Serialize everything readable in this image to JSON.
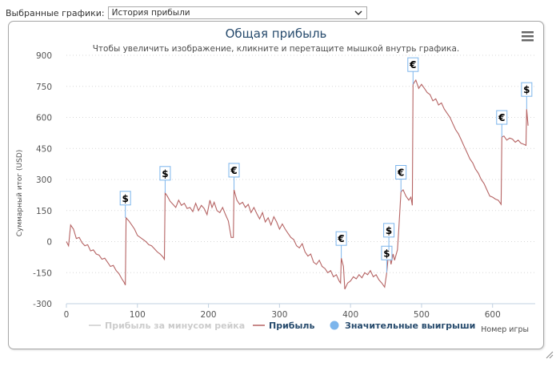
{
  "selector": {
    "label": "Выбранные графики:",
    "value": "История прибыли"
  },
  "chart_data": {
    "type": "line",
    "title": "Общая прибыль",
    "subtitle": "Чтобы увеличить изображение, кликните и перетащите мышкой внутрь графика.",
    "ylabel": "Суммарный итог (USD)",
    "xlabel": "Номер игры",
    "xlim": [
      0,
      660
    ],
    "ylim": [
      -300,
      900
    ],
    "xticks": [
      0,
      100,
      200,
      300,
      400,
      500,
      600
    ],
    "yticks": [
      -300,
      -150,
      0,
      150,
      300,
      450,
      600,
      750,
      900
    ],
    "grid": "horizontal-dotted",
    "series": [
      {
        "name": "Прибыль за минусом рейка",
        "color": "#cccccc",
        "hidden": true,
        "values": []
      },
      {
        "name": "Прибыль",
        "color": "#b56363",
        "points": [
          [
            0,
            0
          ],
          [
            3,
            -20
          ],
          [
            6,
            80
          ],
          [
            10,
            60
          ],
          [
            14,
            15
          ],
          [
            18,
            20
          ],
          [
            22,
            -5
          ],
          [
            26,
            -20
          ],
          [
            30,
            -15
          ],
          [
            34,
            -45
          ],
          [
            38,
            -40
          ],
          [
            42,
            -60
          ],
          [
            46,
            -65
          ],
          [
            50,
            -85
          ],
          [
            54,
            -80
          ],
          [
            58,
            -100
          ],
          [
            62,
            -120
          ],
          [
            66,
            -115
          ],
          [
            70,
            -140
          ],
          [
            74,
            -155
          ],
          [
            78,
            -180
          ],
          [
            81,
            -195
          ],
          [
            83,
            -210
          ],
          [
            84,
            115
          ],
          [
            88,
            100
          ],
          [
            92,
            80
          ],
          [
            96,
            60
          ],
          [
            100,
            30
          ],
          [
            104,
            20
          ],
          [
            108,
            10
          ],
          [
            112,
            0
          ],
          [
            116,
            -15
          ],
          [
            120,
            -20
          ],
          [
            124,
            -35
          ],
          [
            128,
            -50
          ],
          [
            132,
            -60
          ],
          [
            136,
            -75
          ],
          [
            138,
            -85
          ],
          [
            139,
            235
          ],
          [
            142,
            220
          ],
          [
            146,
            195
          ],
          [
            150,
            180
          ],
          [
            154,
            165
          ],
          [
            158,
            200
          ],
          [
            162,
            175
          ],
          [
            166,
            185
          ],
          [
            170,
            160
          ],
          [
            174,
            165
          ],
          [
            178,
            145
          ],
          [
            182,
            185
          ],
          [
            186,
            150
          ],
          [
            190,
            175
          ],
          [
            194,
            160
          ],
          [
            198,
            130
          ],
          [
            202,
            200
          ],
          [
            205,
            165
          ],
          [
            208,
            190
          ],
          [
            212,
            150
          ],
          [
            216,
            140
          ],
          [
            220,
            165
          ],
          [
            224,
            130
          ],
          [
            228,
            100
          ],
          [
            232,
            20
          ],
          [
            235,
            20
          ],
          [
            236,
            250
          ],
          [
            240,
            200
          ],
          [
            244,
            180
          ],
          [
            248,
            190
          ],
          [
            252,
            165
          ],
          [
            256,
            180
          ],
          [
            260,
            140
          ],
          [
            264,
            165
          ],
          [
            268,
            135
          ],
          [
            272,
            110
          ],
          [
            276,
            140
          ],
          [
            280,
            95
          ],
          [
            284,
            115
          ],
          [
            288,
            80
          ],
          [
            292,
            120
          ],
          [
            296,
            95
          ],
          [
            300,
            60
          ],
          [
            304,
            85
          ],
          [
            308,
            60
          ],
          [
            312,
            40
          ],
          [
            316,
            20
          ],
          [
            320,
            10
          ],
          [
            324,
            -20
          ],
          [
            328,
            -30
          ],
          [
            332,
            -10
          ],
          [
            336,
            -50
          ],
          [
            340,
            -70
          ],
          [
            344,
            -60
          ],
          [
            348,
            -100
          ],
          [
            352,
            -110
          ],
          [
            356,
            -90
          ],
          [
            360,
            -120
          ],
          [
            364,
            -130
          ],
          [
            368,
            -150
          ],
          [
            372,
            -140
          ],
          [
            376,
            -170
          ],
          [
            380,
            -160
          ],
          [
            384,
            -190
          ],
          [
            386,
            -200
          ],
          [
            387,
            -80
          ],
          [
            390,
            -120
          ],
          [
            392,
            -230
          ],
          [
            396,
            -200
          ],
          [
            400,
            -190
          ],
          [
            404,
            -170
          ],
          [
            408,
            -180
          ],
          [
            412,
            -160
          ],
          [
            416,
            -175
          ],
          [
            420,
            -150
          ],
          [
            424,
            -160
          ],
          [
            428,
            -140
          ],
          [
            432,
            -170
          ],
          [
            436,
            -160
          ],
          [
            440,
            -185
          ],
          [
            444,
            -200
          ],
          [
            448,
            -220
          ],
          [
            451,
            -150
          ],
          [
            454,
            -40
          ],
          [
            457,
            -110
          ],
          [
            460,
            -60
          ],
          [
            462,
            -90
          ],
          [
            466,
            -40
          ],
          [
            468,
            60
          ],
          [
            471,
            240
          ],
          [
            474,
            250
          ],
          [
            478,
            220
          ],
          [
            482,
            200
          ],
          [
            485,
            215
          ],
          [
            487,
            175
          ],
          [
            488,
            760
          ],
          [
            492,
            780
          ],
          [
            496,
            740
          ],
          [
            500,
            760
          ],
          [
            504,
            740
          ],
          [
            508,
            720
          ],
          [
            512,
            710
          ],
          [
            516,
            680
          ],
          [
            520,
            690
          ],
          [
            524,
            660
          ],
          [
            528,
            670
          ],
          [
            532,
            640
          ],
          [
            536,
            620
          ],
          [
            540,
            600
          ],
          [
            544,
            570
          ],
          [
            548,
            540
          ],
          [
            552,
            520
          ],
          [
            556,
            490
          ],
          [
            560,
            460
          ],
          [
            564,
            430
          ],
          [
            568,
            400
          ],
          [
            572,
            380
          ],
          [
            576,
            350
          ],
          [
            580,
            330
          ],
          [
            584,
            300
          ],
          [
            588,
            280
          ],
          [
            592,
            250
          ],
          [
            596,
            220
          ],
          [
            600,
            215
          ],
          [
            604,
            205
          ],
          [
            608,
            200
          ],
          [
            612,
            180
          ],
          [
            613,
            505
          ],
          [
            616,
            510
          ],
          [
            620,
            490
          ],
          [
            624,
            500
          ],
          [
            628,
            495
          ],
          [
            632,
            480
          ],
          [
            636,
            490
          ],
          [
            640,
            475
          ],
          [
            644,
            470
          ],
          [
            647,
            465
          ],
          [
            648,
            640
          ],
          [
            650,
            560
          ]
        ]
      },
      {
        "name": "Значительные выигрыши",
        "color": "#7cb5ec",
        "type": "flags",
        "flags": [
          {
            "x": 83,
            "y": 115,
            "symbol": "$"
          },
          {
            "x": 139,
            "y": 235,
            "symbol": "$"
          },
          {
            "x": 236,
            "y": 250,
            "symbol": "€"
          },
          {
            "x": 387,
            "y": -80,
            "symbol": "€"
          },
          {
            "x": 451,
            "y": -150,
            "symbol": "$"
          },
          {
            "x": 454,
            "y": -40,
            "symbol": "$"
          },
          {
            "x": 471,
            "y": 240,
            "symbol": "€"
          },
          {
            "x": 488,
            "y": 760,
            "symbol": "€"
          },
          {
            "x": 613,
            "y": 505,
            "symbol": "€"
          },
          {
            "x": 648,
            "y": 640,
            "symbol": "$"
          }
        ]
      }
    ],
    "legend_position": "bottom-center"
  },
  "menu": {
    "icon": "hamburger-menu-icon"
  }
}
